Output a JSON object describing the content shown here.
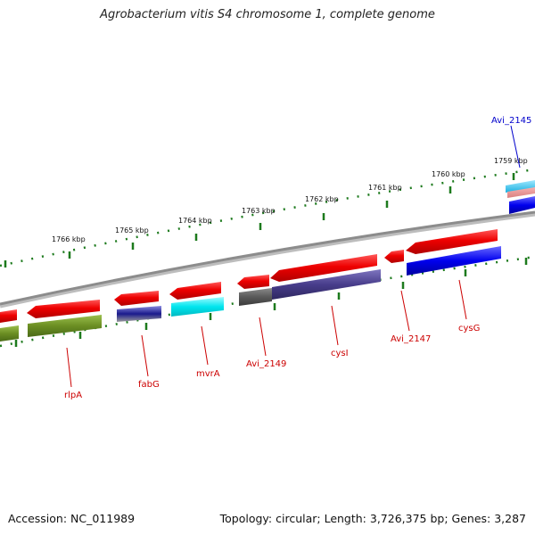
{
  "title": "Agrobacterium vitis S4 chromosome 1, complete genome",
  "footer": {
    "accession": "Accession: NC_011989",
    "summary": "Topology: circular; Length: 3,726,375 bp; Genes: 3,287"
  },
  "colors": {
    "backbone": "#8c8c8c",
    "tick_dots": "#1d7a1d",
    "label_red": "#cc0000",
    "label_blue": "#0000cc",
    "cds_red": "#ee0000",
    "cog_olive": "#6b8e23",
    "cog_navy": "#1a1a8c",
    "cog_cyan": "#00e5ee",
    "cog_gray": "#5a5a5a",
    "cog_slate": "#483d8b",
    "cog_blue": "#0000ee"
  },
  "ticks": [
    {
      "label": "1766 kbp"
    },
    {
      "label": "1765 kbp"
    },
    {
      "label": "1764 kbp"
    },
    {
      "label": "1763 kbp"
    },
    {
      "label": "1762 kbp"
    },
    {
      "label": "1761 kbp"
    },
    {
      "label": "1760 kbp"
    },
    {
      "label": "1759 kbp"
    }
  ],
  "genes": [
    {
      "name": "rlpA",
      "color": "#cc0000"
    },
    {
      "name": "fabG",
      "color": "#cc0000"
    },
    {
      "name": "mvrA",
      "color": "#cc0000"
    },
    {
      "name": "Avi_2149",
      "color": "#cc0000"
    },
    {
      "name": "cysI",
      "color": "#cc0000"
    },
    {
      "name": "Avi_2147",
      "color": "#cc0000"
    },
    {
      "name": "cysG",
      "color": "#cc0000"
    },
    {
      "name": "Avi_2145",
      "color": "#0000cc"
    }
  ]
}
